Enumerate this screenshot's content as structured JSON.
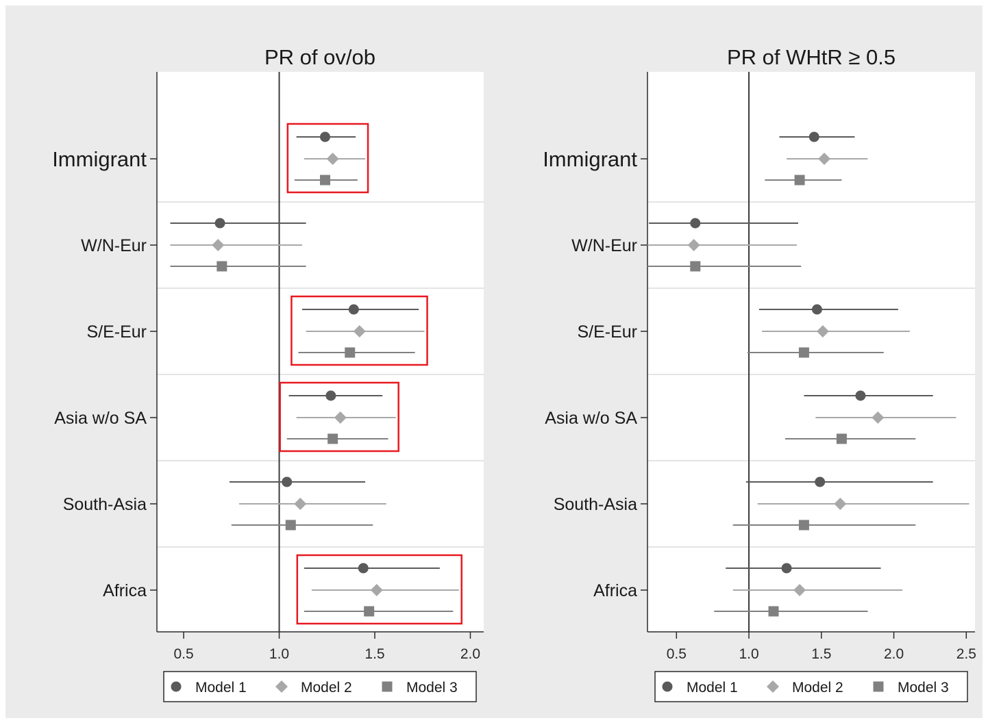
{
  "colors": {
    "background": "#ebebeb",
    "plot_bg": "#ffffff",
    "model1": "#5a5a5a",
    "model2": "#a8a8a8",
    "model3": "#808080",
    "highlight_box": "#e8191f",
    "axis": "#2a2a2a"
  },
  "legend_labels": [
    "Model 1",
    "Model 2",
    "Model 3"
  ],
  "chart_data": [
    {
      "type": "scatter",
      "title": "PR of ov/ob",
      "xlabel": "",
      "ylabel": "",
      "xlim": [
        0.36,
        2.07
      ],
      "xticks": [
        "0.5",
        "1.0",
        "1.5",
        "2.0"
      ],
      "reference_line": 1.0,
      "grid": "horizontal separators between groups",
      "legend_position": "bottom",
      "categories": [
        "Immigrant",
        "W/N-Eur",
        "S/E-Eur",
        "Asia w/o SA",
        "South-Asia",
        "Africa"
      ],
      "series": [
        {
          "name": "Model 1",
          "marker": "circle",
          "estimate": [
            1.24,
            0.69,
            1.39,
            1.27,
            1.04,
            1.44
          ],
          "ci_low": [
            1.09,
            0.43,
            1.12,
            1.05,
            0.74,
            1.13
          ],
          "ci_high": [
            1.4,
            1.14,
            1.73,
            1.54,
            1.45,
            1.84
          ]
        },
        {
          "name": "Model 2",
          "marker": "diamond",
          "estimate": [
            1.28,
            0.68,
            1.42,
            1.32,
            1.11,
            1.51
          ],
          "ci_low": [
            1.13,
            0.43,
            1.14,
            1.09,
            0.79,
            1.17
          ],
          "ci_high": [
            1.45,
            1.12,
            1.76,
            1.61,
            1.56,
            1.94
          ]
        },
        {
          "name": "Model 3",
          "marker": "square",
          "estimate": [
            1.24,
            0.7,
            1.37,
            1.28,
            1.06,
            1.47
          ],
          "ci_low": [
            1.08,
            0.43,
            1.1,
            1.04,
            0.75,
            1.13
          ],
          "ci_high": [
            1.41,
            1.14,
            1.71,
            1.57,
            1.49,
            1.91
          ]
        }
      ],
      "highlighted_categories": [
        "Immigrant",
        "S/E-Eur",
        "Asia w/o SA",
        "Africa"
      ]
    },
    {
      "type": "scatter",
      "title": "PR of WHtR ≥ 0.5",
      "xlabel": "",
      "ylabel": "",
      "xlim": [
        0.3,
        2.56
      ],
      "xticks": [
        "0.5",
        "1.0",
        "1.5",
        "2.0",
        "2.5"
      ],
      "reference_line": 1.0,
      "grid": "horizontal separators between groups",
      "legend_position": "bottom",
      "categories": [
        "Immigrant",
        "W/N-Eur",
        "S/E-Eur",
        "Asia w/o SA",
        "South-Asia",
        "Africa"
      ],
      "series": [
        {
          "name": "Model 1",
          "marker": "circle",
          "estimate": [
            1.45,
            0.63,
            1.47,
            1.77,
            1.49,
            1.26
          ],
          "ci_low": [
            1.21,
            0.31,
            1.07,
            1.38,
            0.98,
            0.84
          ],
          "ci_high": [
            1.73,
            1.34,
            2.03,
            2.27,
            2.27,
            1.91
          ]
        },
        {
          "name": "Model 2",
          "marker": "diamond",
          "estimate": [
            1.52,
            0.62,
            1.51,
            1.89,
            1.63,
            1.35
          ],
          "ci_low": [
            1.26,
            0.3,
            1.09,
            1.46,
            1.06,
            0.89
          ],
          "ci_high": [
            1.82,
            1.33,
            2.11,
            2.43,
            2.52,
            2.06
          ]
        },
        {
          "name": "Model 3",
          "marker": "square",
          "estimate": [
            1.35,
            0.63,
            1.38,
            1.64,
            1.38,
            1.17
          ],
          "ci_low": [
            1.11,
            0.3,
            0.99,
            1.25,
            0.89,
            0.76
          ],
          "ci_high": [
            1.64,
            1.36,
            1.93,
            2.15,
            2.15,
            1.82
          ]
        }
      ],
      "highlighted_categories": []
    }
  ]
}
